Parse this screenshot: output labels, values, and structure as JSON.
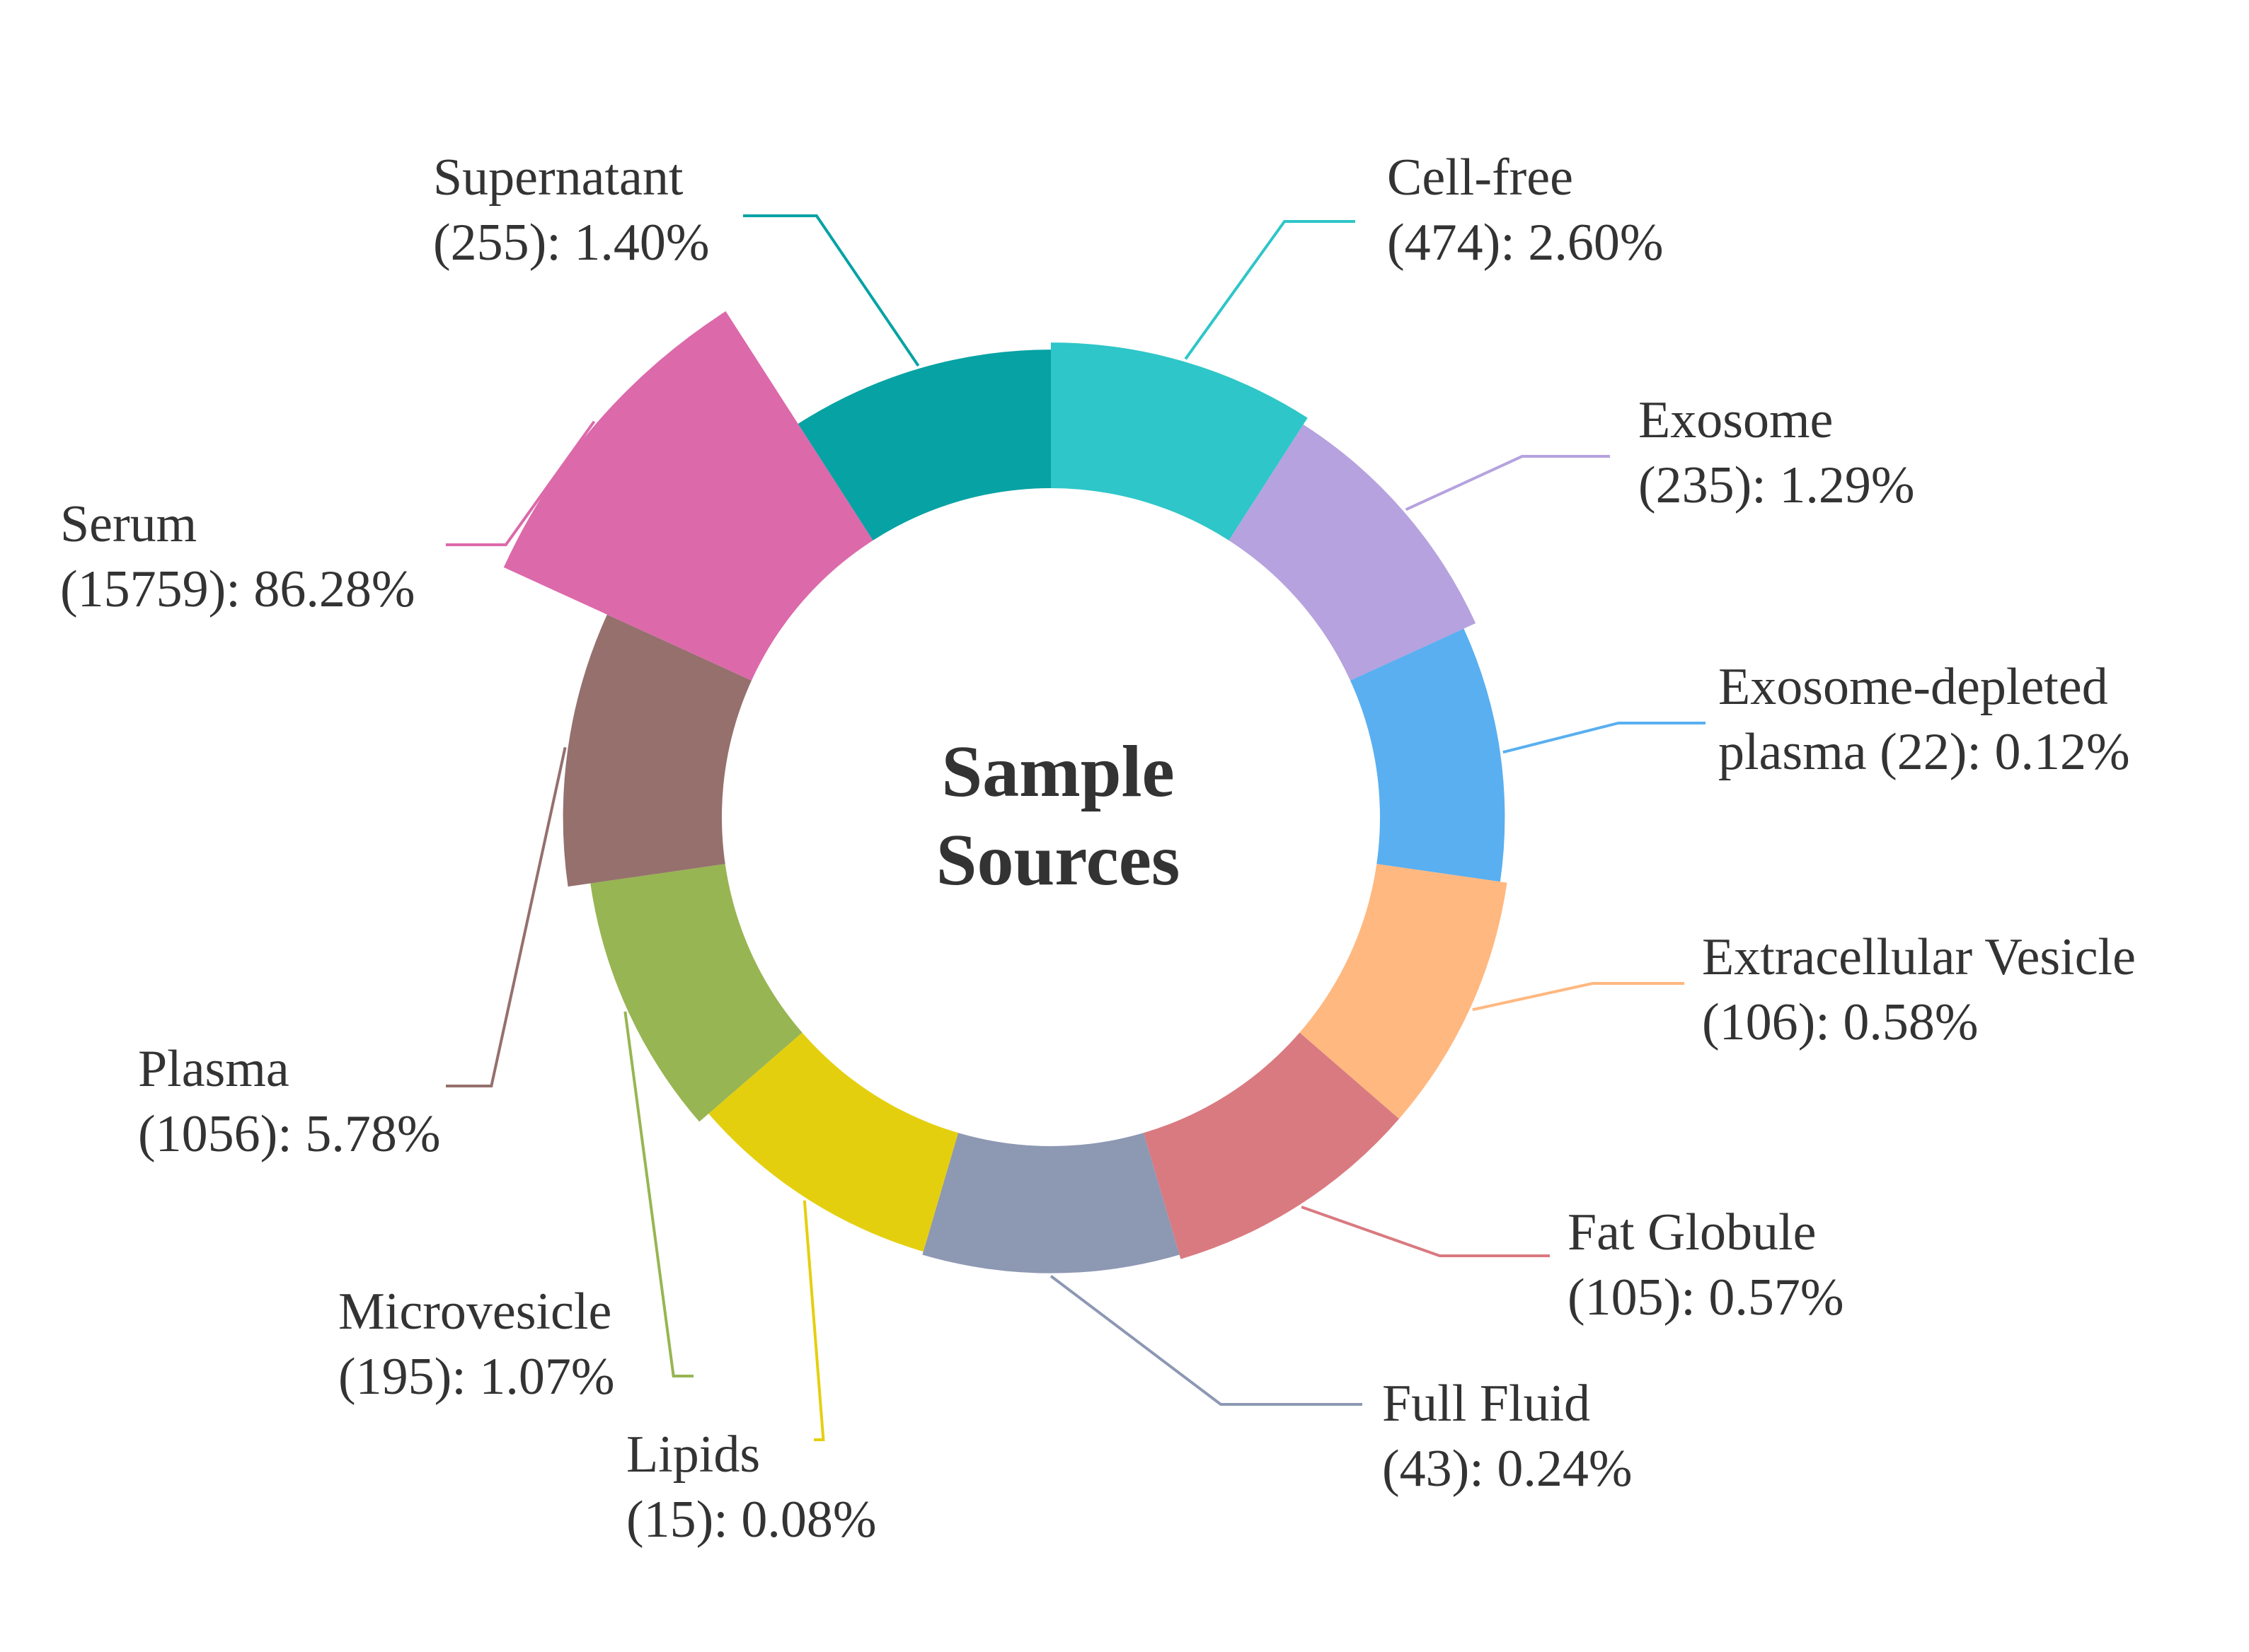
{
  "chart_data": {
    "type": "pie",
    "title": "Sample Sources",
    "title_lines": [
      "Sample",
      "Sources"
    ],
    "slices": [
      {
        "name": "Cell-free",
        "line1": "Cell-free",
        "line2": "(474): 2.60%",
        "count": 474,
        "percent": 2.6,
        "color": "#2ec6c8"
      },
      {
        "name": "Exosome",
        "line1": "Exosome",
        "line2": "(235): 1.29%",
        "count": 235,
        "percent": 1.29,
        "color": "#b5a2de"
      },
      {
        "name": "Exosome-depleted plasma",
        "line1": "Exosome-depleted",
        "line2": "plasma (22): 0.12%",
        "count": 22,
        "percent": 0.12,
        "color": "#59aff0"
      },
      {
        "name": "Extracellular Vesicle",
        "line1": "Extracellular Vesicle",
        "line2": "(106): 0.58%",
        "count": 106,
        "percent": 0.58,
        "color": "#ffb880"
      },
      {
        "name": "Fat Globule",
        "line1": "Fat Globule",
        "line2": "(105): 0.57%",
        "count": 105,
        "percent": 0.57,
        "color": "#d97a80"
      },
      {
        "name": "Full Fluid",
        "line1": "Full Fluid",
        "line2": "(43): 0.24%",
        "count": 43,
        "percent": 0.24,
        "color": "#8d98b3"
      },
      {
        "name": "Lipids",
        "line1": "Lipids",
        "line2": "(15): 0.08%",
        "count": 15,
        "percent": 0.08,
        "color": "#e4cf0f"
      },
      {
        "name": "Microvesicle",
        "line1": "Microvesicle",
        "line2": "(195): 1.07%",
        "count": 195,
        "percent": 1.07,
        "color": "#97b552"
      },
      {
        "name": "Plasma",
        "line1": "Plasma",
        "line2": "(1056): 5.78%",
        "count": 1056,
        "percent": 5.78,
        "color": "#95706d"
      },
      {
        "name": "Serum",
        "line1": "Serum",
        "line2": "(15759): 86.28%",
        "count": 15759,
        "percent": 86.28,
        "color": "#dc69aa"
      },
      {
        "name": "Supernatant",
        "line1": "Supernatant",
        "line2": "(255): 1.40%",
        "count": 255,
        "percent": 1.4,
        "color": "#07a2a4"
      }
    ],
    "rose_type": "radius",
    "legend": "none"
  }
}
